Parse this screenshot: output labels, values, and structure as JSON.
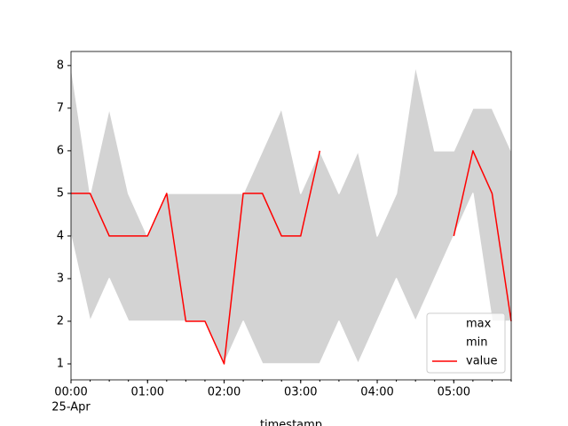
{
  "chart_data": {
    "type": "line",
    "x": [
      "00:00",
      "00:15",
      "00:30",
      "00:45",
      "01:00",
      "01:15",
      "01:30",
      "01:45",
      "02:00",
      "02:15",
      "02:30",
      "02:45",
      "03:00",
      "03:15",
      "03:30",
      "03:45",
      "04:00",
      "04:15",
      "04:30",
      "04:45",
      "05:00",
      "05:15",
      "05:30",
      "05:45"
    ],
    "x_date_label": "25-Apr",
    "xlabel": "timestamp",
    "xlim": [
      "00:00",
      "05:45"
    ],
    "xticks": [
      "00:00",
      "01:00",
      "02:00",
      "03:00",
      "04:00",
      "05:00"
    ],
    "ylim": [
      0.625,
      8.33
    ],
    "yticks": [
      1,
      2,
      3,
      4,
      5,
      6,
      7,
      8
    ],
    "fill_color": "#d3d3d3",
    "legend": "lower right",
    "series": [
      {
        "name": "max",
        "color": "#ffffff",
        "values": [
          8,
          5,
          7,
          5,
          4,
          5,
          5,
          5,
          5,
          5,
          6,
          7,
          5,
          6,
          5,
          6,
          4,
          5,
          8,
          6,
          6,
          7,
          7,
          6
        ]
      },
      {
        "name": "min",
        "color": "#ffffff",
        "values": [
          4,
          2,
          3,
          2,
          2,
          2,
          2,
          2,
          1,
          2,
          1,
          1,
          1,
          1,
          2,
          1,
          2,
          3,
          2,
          3,
          4,
          5,
          2,
          2
        ]
      },
      {
        "name": "value",
        "color": "#ff0000",
        "values": [
          5,
          5,
          4,
          4,
          4,
          5,
          2,
          2,
          1,
          5,
          5,
          4,
          4,
          6,
          null,
          null,
          null,
          null,
          null,
          null,
          4,
          6,
          5,
          2
        ]
      }
    ]
  }
}
